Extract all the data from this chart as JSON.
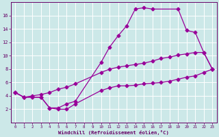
{
  "xlabel": "Windchill (Refroidissement éolien,°C)",
  "bg_color": "#cce8e8",
  "grid_color": "#ffffff",
  "line_color": "#990099",
  "tick_color": "#660066",
  "xlim": [
    -0.5,
    23.5
  ],
  "ylim": [
    0,
    18
  ],
  "xticks": [
    0,
    1,
    2,
    3,
    4,
    5,
    6,
    7,
    8,
    9,
    10,
    11,
    12,
    13,
    14,
    15,
    16,
    17,
    18,
    19,
    20,
    21,
    22,
    23
  ],
  "yticks": [
    2,
    4,
    6,
    8,
    10,
    12,
    14,
    16
  ],
  "curve1_x": [
    0,
    1,
    3,
    4,
    5,
    6,
    7,
    10,
    11,
    12,
    13,
    14,
    15,
    16,
    19,
    20,
    21,
    22,
    23
  ],
  "curve1_y": [
    4.5,
    3.8,
    3.8,
    2.2,
    2.2,
    2.8,
    3.2,
    9.0,
    11.3,
    13.0,
    14.5,
    17.0,
    17.2,
    17.0,
    17.0,
    13.8,
    13.5,
    10.5,
    8.0
  ],
  "curve2_x": [
    0,
    1,
    2,
    3,
    4,
    5,
    6,
    7,
    10,
    11,
    12,
    13,
    14,
    15,
    16,
    17,
    18,
    19,
    20,
    21,
    22,
    23
  ],
  "curve2_y": [
    4.5,
    3.8,
    3.8,
    3.8,
    2.2,
    2.0,
    2.0,
    2.8,
    4.8,
    5.2,
    5.5,
    5.5,
    5.6,
    5.8,
    5.9,
    6.0,
    6.2,
    6.5,
    6.8,
    7.0,
    7.5,
    8.0
  ],
  "curve3_x": [
    0,
    1,
    2,
    3,
    4,
    5,
    6,
    7,
    10,
    11,
    12,
    13,
    14,
    15,
    16,
    17,
    18,
    19,
    20,
    21,
    22,
    23
  ],
  "curve3_y": [
    4.5,
    3.8,
    4.0,
    4.2,
    4.5,
    5.0,
    5.3,
    5.8,
    7.5,
    8.0,
    8.3,
    8.5,
    8.7,
    8.9,
    9.2,
    9.6,
    9.8,
    10.1,
    10.3,
    10.5,
    10.5,
    8.0
  ]
}
